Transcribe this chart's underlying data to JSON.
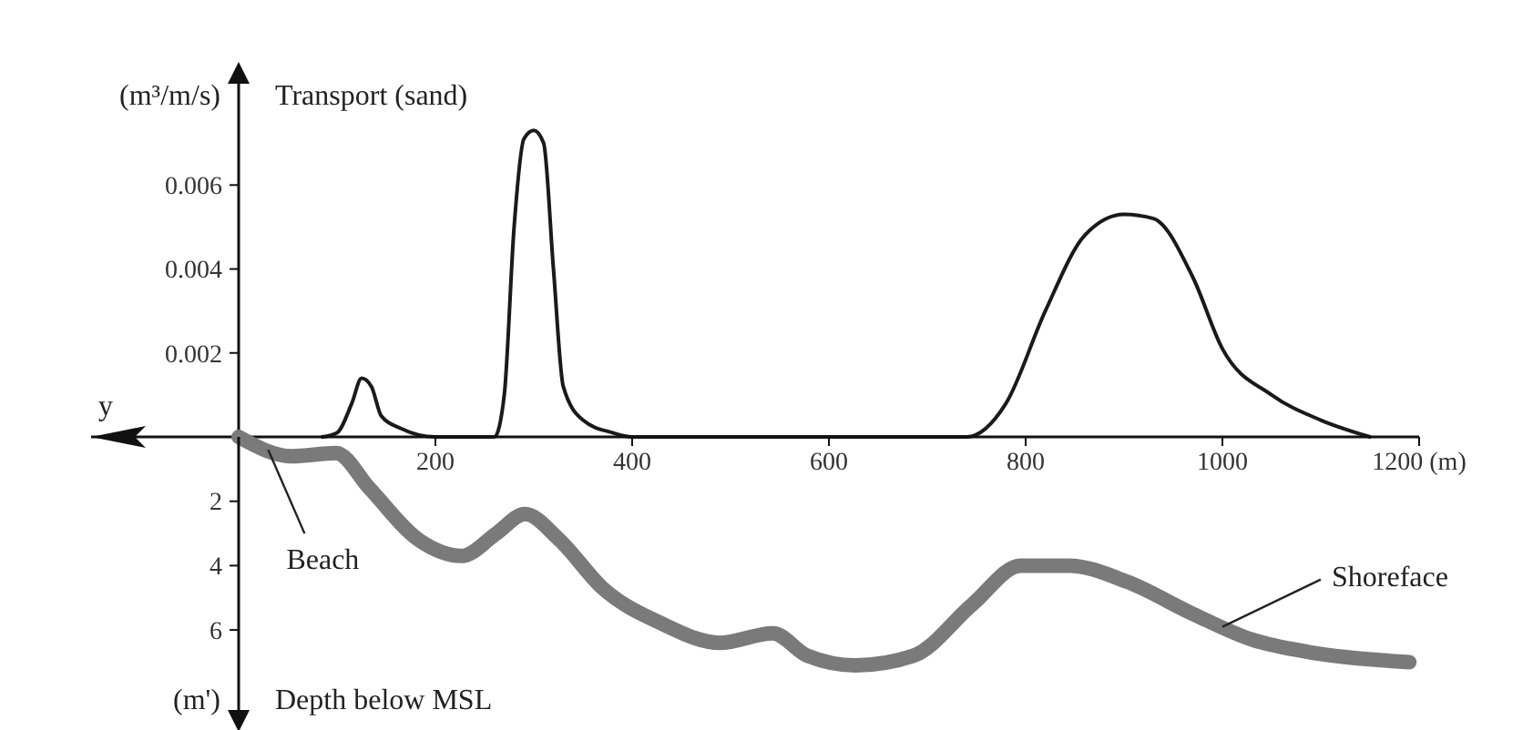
{
  "chart_data": [
    {
      "type": "line",
      "title": "Transport (sand)",
      "ylabel": "(m³/m/s)",
      "xlabel": "y",
      "tick_labels": "y",
      "xlim": [
        -150,
        1200
      ],
      "xticks": [
        200,
        400,
        600,
        800,
        1000,
        1200
      ],
      "ylim": [
        0,
        0.0085
      ],
      "yticks": [
        0.002,
        0.004,
        0.006
      ],
      "series": [
        {
          "color": "#1a1a1a",
          "x": [
            85,
            100,
            115,
            125,
            135,
            145,
            165,
            200,
            260,
            270,
            280,
            290,
            300,
            310,
            320,
            330,
            350,
            380,
            400,
            740,
            780,
            820,
            860,
            900,
            930,
            970,
            1000,
            1050,
            1100,
            1150
          ],
          "values": [
            0,
            0.0001,
            0.0008,
            0.0014,
            0.0012,
            0.0005,
            0.0002,
            0,
            0,
            0.001,
            0.005,
            0.0071,
            0.0073,
            0.007,
            0.004,
            0.0012,
            0.0004,
            0.0001,
            0,
            0,
            0.0008,
            0.003,
            0.0048,
            0.0053,
            0.0052,
            0.0038,
            0.0021,
            0.001,
            0.0004,
            0
          ]
        }
      ]
    },
    {
      "type": "line",
      "title": "Depth below MSL",
      "ylabel": "(m')",
      "xlim": [
        -150,
        1200
      ],
      "xticks": [
        200,
        400,
        600,
        800,
        1000,
        {
          "value": 1200,
          "label": "1200 (m)"
        }
      ],
      "ylim": [
        8.6,
        0
      ],
      "yticks": [
        2,
        4,
        6
      ],
      "series": [
        {
          "color": "#7a7a7a",
          "x": [
            0,
            54,
            99,
            133,
            183,
            227,
            262,
            291,
            326,
            370,
            430,
            489,
            543,
            578,
            627,
            686,
            746,
            795,
            844,
            903,
            970,
            1030,
            1090,
            1190
          ],
          "values": [
            0,
            0.6,
            0.5,
            1.6,
            3.2,
            3.7,
            3.0,
            2.4,
            3.2,
            4.7,
            5.8,
            6.4,
            6.1,
            6.8,
            7.1,
            6.8,
            5.2,
            4.0,
            4.0,
            4.5,
            5.5,
            6.3,
            6.7,
            7.0
          ]
        }
      ],
      "annotations": [
        {
          "text": "Beach",
          "x": 30,
          "y": 0.4
        },
        {
          "text": "Shoreface",
          "x": 1000,
          "y": 5.9
        }
      ]
    }
  ]
}
